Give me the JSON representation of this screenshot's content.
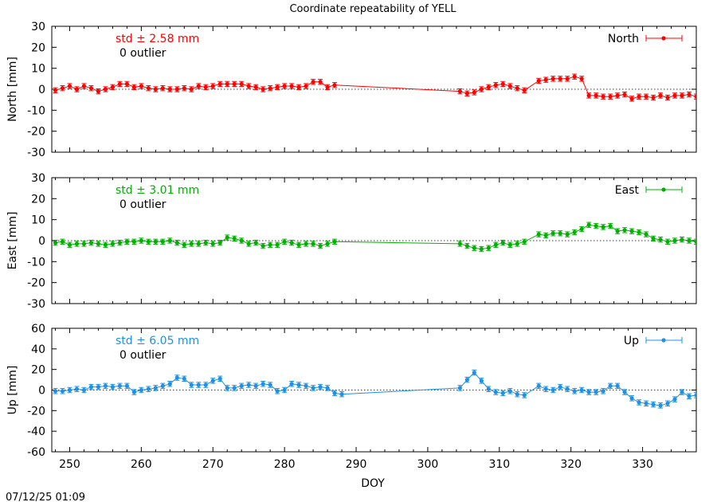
{
  "title": "Coordinate repeatability of YELL",
  "xlabel": "DOY",
  "timestamp": "07/12/25 01:09",
  "chart_data": [
    {
      "type": "line",
      "panel": "north",
      "ylabel": "North [mm]",
      "legend": "North",
      "legend_position": "top-right",
      "color": "#ff0000",
      "stat_label": "std ± 2.58 mm",
      "outlier_label": "0 outlier",
      "xlim": [
        247.5,
        337.5
      ],
      "ylim": [
        -30,
        30
      ],
      "yticks": [
        -30,
        -20,
        -10,
        0,
        10,
        20,
        30
      ],
      "xticks": [
        250,
        260,
        270,
        280,
        290,
        300,
        310,
        320,
        330
      ],
      "zero_line": true,
      "points": [
        [
          248,
          -0.5
        ],
        [
          249,
          0.5
        ],
        [
          250,
          1.5
        ],
        [
          251,
          0
        ],
        [
          252,
          1.5
        ],
        [
          253,
          0.5
        ],
        [
          254,
          -1
        ],
        [
          255,
          0
        ],
        [
          256,
          1
        ],
        [
          257,
          2.5
        ],
        [
          258,
          2.5
        ],
        [
          259,
          1
        ],
        [
          260,
          1.5
        ],
        [
          261,
          0.5
        ],
        [
          262,
          0
        ],
        [
          263,
          0.5
        ],
        [
          264,
          0
        ],
        [
          265,
          0
        ],
        [
          266,
          0.5
        ],
        [
          267,
          0
        ],
        [
          268,
          1.5
        ],
        [
          269,
          1
        ],
        [
          270,
          1.5
        ],
        [
          271,
          2.5
        ],
        [
          272,
          2.5
        ],
        [
          273,
          2.5
        ],
        [
          274,
          2.5
        ],
        [
          275,
          1.5
        ],
        [
          276,
          1
        ],
        [
          277,
          0
        ],
        [
          278,
          0.5
        ],
        [
          279,
          1
        ],
        [
          280,
          1.5
        ],
        [
          281,
          1.5
        ],
        [
          282,
          1
        ],
        [
          283,
          1.5
        ],
        [
          284,
          3.5
        ],
        [
          285,
          3.5
        ],
        [
          286,
          1
        ],
        [
          287,
          2
        ],
        [
          304.5,
          -1
        ],
        [
          305.5,
          -2
        ],
        [
          306.5,
          -1.5
        ],
        [
          307.5,
          0
        ],
        [
          308.5,
          1
        ],
        [
          309.5,
          2
        ],
        [
          310.5,
          2.5
        ],
        [
          311.5,
          1.5
        ],
        [
          312.5,
          0.5
        ],
        [
          313.5,
          -0.5
        ],
        [
          315.5,
          4
        ],
        [
          316.5,
          4.5
        ],
        [
          317.5,
          5
        ],
        [
          318.5,
          5
        ],
        [
          319.5,
          5
        ],
        [
          320.5,
          6
        ],
        [
          321.5,
          5
        ],
        [
          322.5,
          -3
        ],
        [
          323.5,
          -3
        ],
        [
          324.5,
          -3.5
        ],
        [
          325.5,
          -3.5
        ],
        [
          326.5,
          -3
        ],
        [
          327.5,
          -2.5
        ],
        [
          328.5,
          -4.5
        ],
        [
          329.5,
          -3.5
        ],
        [
          330.5,
          -3.5
        ],
        [
          331.5,
          -4
        ],
        [
          332.5,
          -3
        ],
        [
          333.5,
          -4
        ],
        [
          334.5,
          -3
        ],
        [
          335.5,
          -3
        ],
        [
          336.5,
          -2.5
        ],
        [
          337.5,
          -3.5
        ]
      ],
      "error": 1.2
    },
    {
      "type": "line",
      "panel": "east",
      "ylabel": "East [mm]",
      "legend": "East",
      "legend_position": "top-right",
      "color": "#00b000",
      "stat_label": "std ± 3.01 mm",
      "outlier_label": "0 outlier",
      "xlim": [
        247.5,
        337.5
      ],
      "ylim": [
        -30,
        30
      ],
      "yticks": [
        -30,
        -20,
        -10,
        0,
        10,
        20,
        30
      ],
      "xticks": [
        250,
        260,
        270,
        280,
        290,
        300,
        310,
        320,
        330
      ],
      "zero_line": true,
      "points": [
        [
          248,
          -1
        ],
        [
          249,
          -0.5
        ],
        [
          250,
          -2
        ],
        [
          251,
          -1.5
        ],
        [
          252,
          -1.5
        ],
        [
          253,
          -1
        ],
        [
          254,
          -1.5
        ],
        [
          255,
          -2
        ],
        [
          256,
          -1.5
        ],
        [
          257,
          -1
        ],
        [
          258,
          -0.5
        ],
        [
          259,
          -0.5
        ],
        [
          260,
          0
        ],
        [
          261,
          -0.5
        ],
        [
          262,
          -0.5
        ],
        [
          263,
          -0.5
        ],
        [
          264,
          0
        ],
        [
          265,
          -1
        ],
        [
          266,
          -2
        ],
        [
          267,
          -1.5
        ],
        [
          268,
          -1.5
        ],
        [
          269,
          -1
        ],
        [
          270,
          -1.5
        ],
        [
          271,
          -1
        ],
        [
          272,
          1.5
        ],
        [
          273,
          1
        ],
        [
          274,
          0
        ],
        [
          275,
          -1.5
        ],
        [
          276,
          -1
        ],
        [
          277,
          -2.5
        ],
        [
          278,
          -2
        ],
        [
          279,
          -2
        ],
        [
          280,
          -0.5
        ],
        [
          281,
          -1
        ],
        [
          282,
          -2
        ],
        [
          283,
          -1.5
        ],
        [
          284,
          -1.5
        ],
        [
          285,
          -2.5
        ],
        [
          286,
          -1.5
        ],
        [
          287,
          -0.5
        ],
        [
          304.5,
          -1.5
        ],
        [
          305.5,
          -2.5
        ],
        [
          306.5,
          -3.5
        ],
        [
          307.5,
          -4
        ],
        [
          308.5,
          -3.5
        ],
        [
          309.5,
          -2
        ],
        [
          310.5,
          -1
        ],
        [
          311.5,
          -2
        ],
        [
          312.5,
          -1.5
        ],
        [
          313.5,
          -0.5
        ],
        [
          315.5,
          3
        ],
        [
          316.5,
          2.5
        ],
        [
          317.5,
          3.5
        ],
        [
          318.5,
          3.5
        ],
        [
          319.5,
          3
        ],
        [
          320.5,
          4
        ],
        [
          321.5,
          5.5
        ],
        [
          322.5,
          7.5
        ],
        [
          323.5,
          7
        ],
        [
          324.5,
          6.5
        ],
        [
          325.5,
          7
        ],
        [
          326.5,
          4.5
        ],
        [
          327.5,
          5
        ],
        [
          328.5,
          4.5
        ],
        [
          329.5,
          4
        ],
        [
          330.5,
          3
        ],
        [
          331.5,
          1
        ],
        [
          332.5,
          0.5
        ],
        [
          333.5,
          -0.5
        ],
        [
          334.5,
          0
        ],
        [
          335.5,
          0.5
        ],
        [
          336.5,
          0
        ],
        [
          337.5,
          -0.5
        ]
      ],
      "error": 1.2
    },
    {
      "type": "line",
      "panel": "up",
      "ylabel": "Up [mm]",
      "legend": "Up",
      "legend_position": "top-right",
      "color": "#1e90e8",
      "stat_label": "std ± 6.05 mm",
      "outlier_label": "0 outlier",
      "xlim": [
        247.5,
        337.5
      ],
      "ylim": [
        -60,
        60
      ],
      "yticks": [
        -60,
        -40,
        -20,
        0,
        20,
        40,
        60
      ],
      "xticks": [
        250,
        260,
        270,
        280,
        290,
        300,
        310,
        320,
        330
      ],
      "zero_line": true,
      "points": [
        [
          248,
          -1
        ],
        [
          249,
          -1
        ],
        [
          250,
          0
        ],
        [
          251,
          1
        ],
        [
          252,
          0
        ],
        [
          253,
          3
        ],
        [
          254,
          3
        ],
        [
          255,
          4
        ],
        [
          256,
          3
        ],
        [
          257,
          4
        ],
        [
          258,
          4
        ],
        [
          259,
          -2
        ],
        [
          260,
          0
        ],
        [
          261,
          1
        ],
        [
          262,
          2
        ],
        [
          263,
          4
        ],
        [
          264,
          6
        ],
        [
          265,
          12
        ],
        [
          266,
          11
        ],
        [
          267,
          5
        ],
        [
          268,
          5
        ],
        [
          269,
          5
        ],
        [
          270,
          9
        ],
        [
          271,
          11
        ],
        [
          272,
          2
        ],
        [
          273,
          2
        ],
        [
          274,
          4
        ],
        [
          275,
          5
        ],
        [
          276,
          4
        ],
        [
          277,
          6
        ],
        [
          278,
          5
        ],
        [
          279,
          -1
        ],
        [
          280,
          0
        ],
        [
          281,
          6
        ],
        [
          282,
          5
        ],
        [
          283,
          4
        ],
        [
          284,
          2
        ],
        [
          285,
          3
        ],
        [
          286,
          2
        ],
        [
          287,
          -3
        ],
        [
          288,
          -4
        ],
        [
          304.5,
          2
        ],
        [
          305.5,
          10
        ],
        [
          306.5,
          17
        ],
        [
          307.5,
          9
        ],
        [
          308.5,
          1
        ],
        [
          309.5,
          -2
        ],
        [
          310.5,
          -3
        ],
        [
          311.5,
          -1
        ],
        [
          312.5,
          -4
        ],
        [
          313.5,
          -5
        ],
        [
          315.5,
          4
        ],
        [
          316.5,
          1
        ],
        [
          317.5,
          0
        ],
        [
          318.5,
          3
        ],
        [
          319.5,
          1
        ],
        [
          320.5,
          -1
        ],
        [
          321.5,
          0
        ],
        [
          322.5,
          -2
        ],
        [
          323.5,
          -2
        ],
        [
          324.5,
          -1
        ],
        [
          325.5,
          4
        ],
        [
          326.5,
          4
        ],
        [
          327.5,
          -2
        ],
        [
          328.5,
          -8
        ],
        [
          329.5,
          -12
        ],
        [
          330.5,
          -13
        ],
        [
          331.5,
          -14
        ],
        [
          332.5,
          -15
        ],
        [
          333.5,
          -13
        ],
        [
          334.5,
          -9
        ],
        [
          335.5,
          -2
        ],
        [
          336.5,
          -6
        ],
        [
          337.5,
          -5
        ]
      ],
      "error": 2.5
    }
  ]
}
